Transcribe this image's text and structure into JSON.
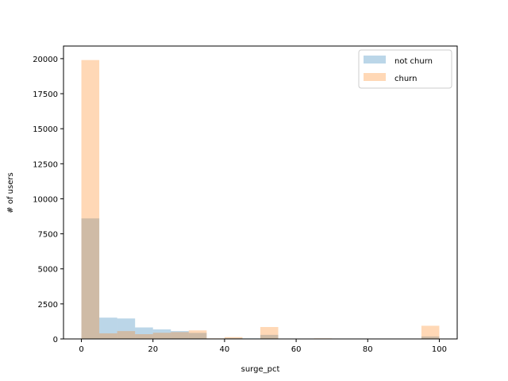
{
  "chart_data": {
    "type": "bar",
    "subtype": "overlapping-histogram",
    "title": "",
    "xlabel": "surge_pct",
    "ylabel": "# of users",
    "xlim": [
      -5,
      105
    ],
    "ylim": [
      0,
      20900
    ],
    "xticks": [
      0,
      20,
      40,
      60,
      80,
      100
    ],
    "yticks": [
      0,
      2500,
      5000,
      7500,
      10000,
      12500,
      15000,
      17500,
      20000
    ],
    "ytick_labels": [
      "0",
      "2500",
      "5000",
      "7500",
      "10000",
      "12500",
      "15000",
      "17500",
      "20000"
    ],
    "legend_position": "top-right",
    "bin_edges": [
      0,
      5,
      10,
      15,
      20,
      25,
      30,
      35,
      40,
      45,
      50,
      55,
      60,
      65,
      70,
      75,
      80,
      85,
      90,
      95,
      100
    ],
    "series": [
      {
        "name": "not churn",
        "color": "#1f77b4",
        "alpha": 0.3,
        "values": [
          8600,
          1520,
          1460,
          820,
          680,
          560,
          430,
          30,
          60,
          40,
          290,
          10,
          0,
          20,
          0,
          0,
          0,
          0,
          0,
          180
        ]
      },
      {
        "name": "churn",
        "color": "#ff7f0e",
        "alpha": 0.3,
        "values": [
          19900,
          400,
          560,
          340,
          440,
          490,
          610,
          40,
          130,
          20,
          850,
          10,
          0,
          40,
          0,
          0,
          0,
          0,
          0,
          940
        ]
      }
    ]
  }
}
